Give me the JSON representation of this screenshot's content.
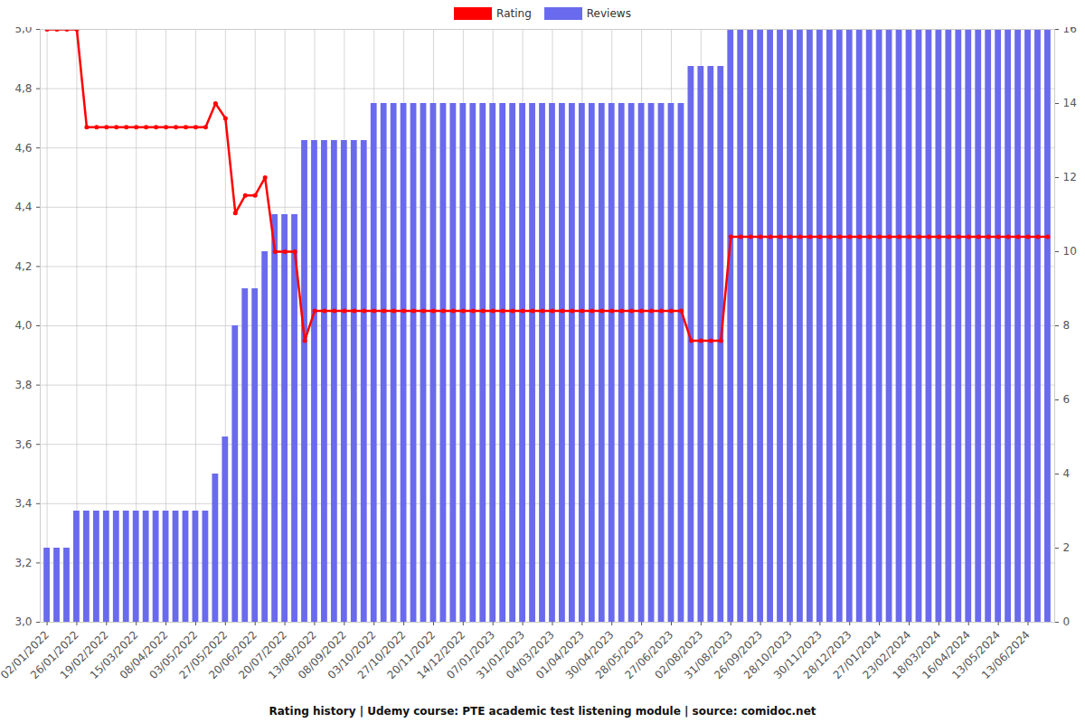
{
  "chart_data": {
    "type": "bar",
    "title": "Rating history | Udemy course: PTE academic test listening module | source: comidoc.net",
    "categories": [
      "02/01/2022",
      null,
      null,
      "26/01/2022",
      null,
      null,
      "19/02/2022",
      null,
      null,
      "15/03/2022",
      null,
      null,
      "08/04/2022",
      null,
      null,
      "03/05/2022",
      null,
      null,
      "27/05/2022",
      null,
      null,
      "20/06/2022",
      null,
      null,
      "20/07/2022",
      null,
      null,
      "13/08/2022",
      null,
      null,
      "08/09/2022",
      null,
      null,
      "03/10/2022",
      null,
      null,
      "27/10/2022",
      null,
      null,
      "20/11/2022",
      null,
      null,
      "14/12/2022",
      null,
      null,
      "07/01/2023",
      null,
      null,
      "31/01/2023",
      null,
      null,
      "04/03/2023",
      null,
      null,
      "01/04/2023",
      null,
      null,
      "30/04/2023",
      null,
      null,
      "28/05/2023",
      null,
      null,
      "27/06/2023",
      null,
      null,
      "02/08/2023",
      null,
      null,
      "31/08/2023",
      null,
      null,
      "26/09/2023",
      null,
      null,
      "28/10/2023",
      null,
      null,
      "30/11/2023",
      null,
      null,
      "28/12/2023",
      null,
      null,
      "27/01/2024",
      null,
      null,
      "23/02/2024",
      null,
      null,
      "18/03/2024",
      null,
      null,
      "16/04/2024",
      null,
      null,
      "13/05/2024",
      null,
      null,
      "13/06/2024",
      null,
      null
    ],
    "series": [
      {
        "name": "Rating",
        "type": "line",
        "color": "#ff0000",
        "marker": "circle",
        "axis": "y",
        "values": [
          5.0,
          5.0,
          5.0,
          5.0,
          4.67,
          4.67,
          4.67,
          4.67,
          4.67,
          4.67,
          4.67,
          4.67,
          4.67,
          4.67,
          4.67,
          4.67,
          4.67,
          4.75,
          4.7,
          4.38,
          4.44,
          4.44,
          4.5,
          4.25,
          4.25,
          4.25,
          3.95,
          4.05,
          4.05,
          4.05,
          4.05,
          4.05,
          4.05,
          4.05,
          4.05,
          4.05,
          4.05,
          4.05,
          4.05,
          4.05,
          4.05,
          4.05,
          4.05,
          4.05,
          4.05,
          4.05,
          4.05,
          4.05,
          4.05,
          4.05,
          4.05,
          4.05,
          4.05,
          4.05,
          4.05,
          4.05,
          4.05,
          4.05,
          4.05,
          4.05,
          4.05,
          4.05,
          4.05,
          4.05,
          4.05,
          3.95,
          3.95,
          3.95,
          3.95,
          4.3,
          4.3,
          4.3,
          4.3,
          4.3,
          4.3,
          4.3,
          4.3,
          4.3,
          4.3,
          4.3,
          4.3,
          4.3,
          4.3,
          4.3,
          4.3,
          4.3,
          4.3,
          4.3,
          4.3,
          4.3,
          4.3,
          4.3,
          4.3,
          4.3,
          4.3,
          4.3,
          4.3,
          4.3,
          4.3,
          4.3,
          4.3,
          4.3
        ]
      },
      {
        "name": "Reviews",
        "type": "bar",
        "color": "#6a6aee",
        "axis": "y2",
        "values": [
          2,
          2,
          2,
          3,
          3,
          3,
          3,
          3,
          3,
          3,
          3,
          3,
          3,
          3,
          3,
          3,
          3,
          4,
          5,
          8,
          9,
          9,
          10,
          11,
          11,
          11,
          13,
          13,
          13,
          13,
          13,
          13,
          13,
          14,
          14,
          14,
          14,
          14,
          14,
          14,
          14,
          14,
          14,
          14,
          14,
          14,
          14,
          14,
          14,
          14,
          14,
          14,
          14,
          14,
          14,
          14,
          14,
          14,
          14,
          14,
          14,
          14,
          14,
          14,
          14,
          15,
          15,
          15,
          15,
          16,
          16,
          16,
          16,
          16,
          16,
          16,
          16,
          16,
          16,
          16,
          16,
          16,
          16,
          16,
          16,
          16,
          16,
          16,
          16,
          16,
          16,
          16,
          16,
          16,
          16,
          16,
          16,
          16,
          16,
          16,
          16,
          16
        ]
      }
    ],
    "ylim": [
      3,
      5
    ],
    "yticks": [
      {
        "value": 3,
        "label": "3,0"
      },
      {
        "value": 3.2,
        "label": "3,2"
      },
      {
        "value": 3.4,
        "label": "3,4"
      },
      {
        "value": 3.6,
        "label": "3,6"
      },
      {
        "value": 3.8,
        "label": "3,8"
      },
      {
        "value": 4,
        "label": "4,0"
      },
      {
        "value": 4.2,
        "label": "4,2"
      },
      {
        "value": 4.4,
        "label": "4,4"
      },
      {
        "value": 4.6,
        "label": "4,6"
      },
      {
        "value": 4.8,
        "label": "4,8"
      },
      {
        "value": 5,
        "label": "5,0"
      }
    ],
    "y2lim": [
      0,
      16
    ],
    "y2ticks": [
      0,
      2,
      4,
      6,
      8,
      10,
      12,
      14,
      16
    ],
    "grid": true,
    "legend": "top"
  }
}
